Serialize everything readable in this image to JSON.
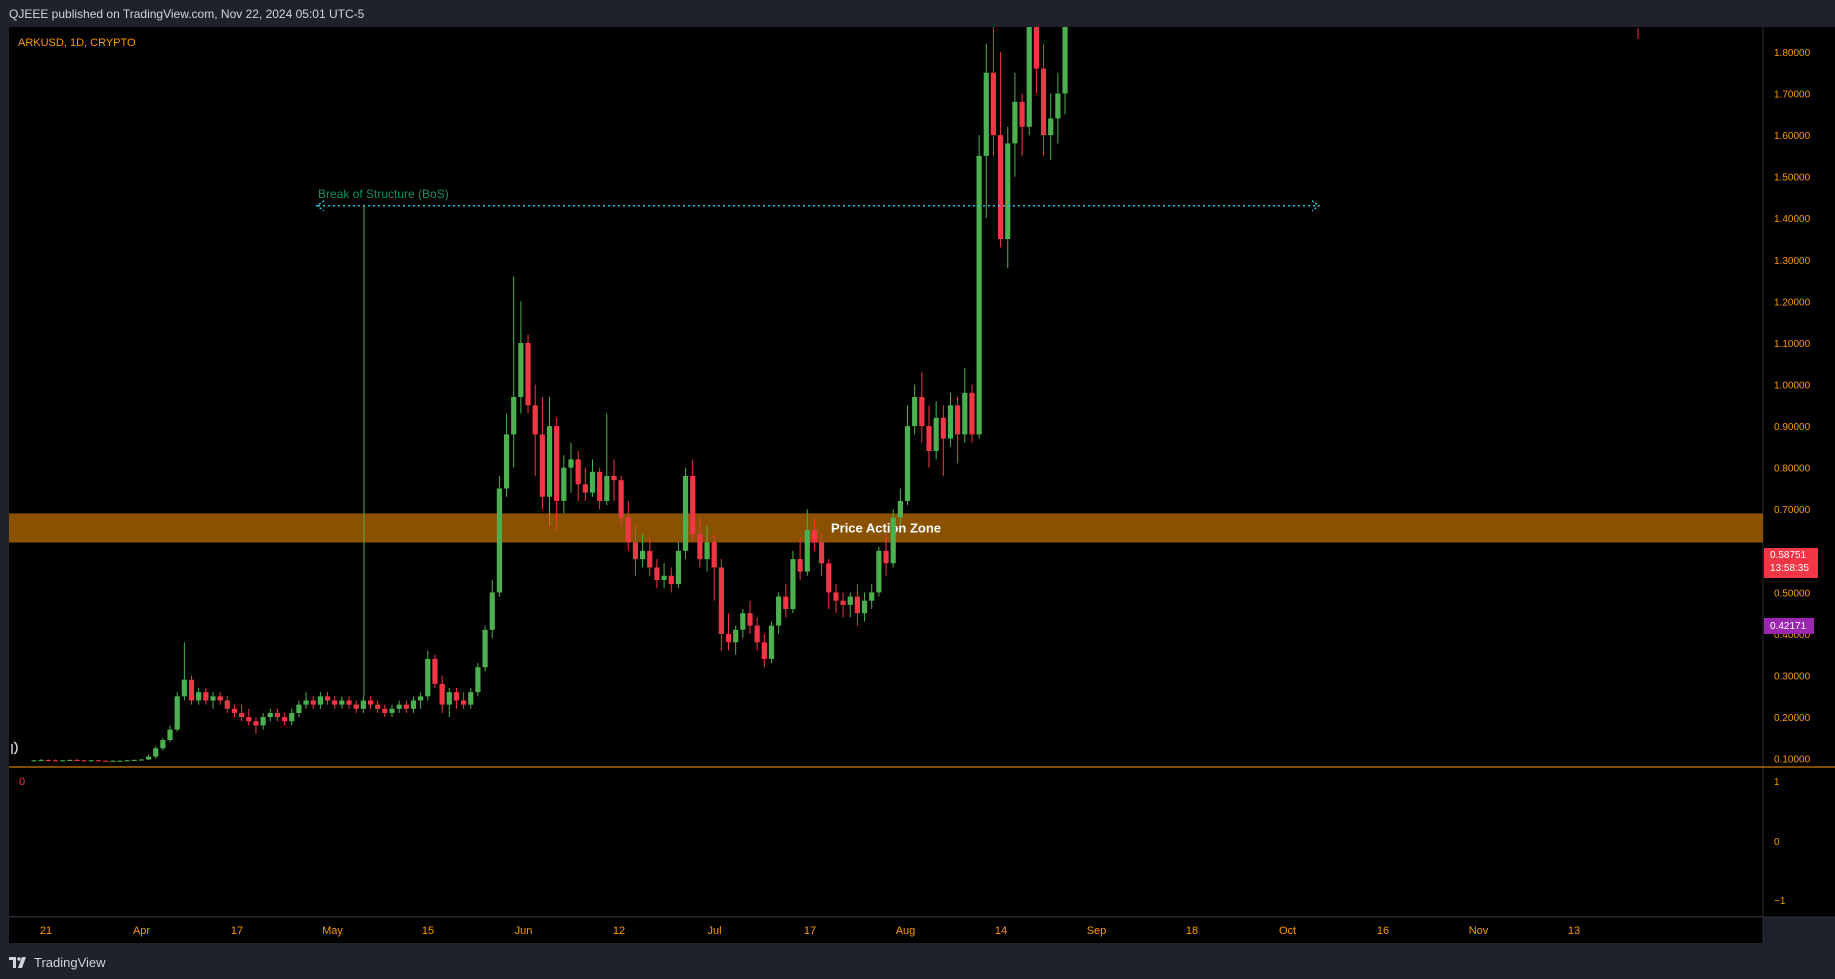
{
  "header": {
    "published": "QJEEE published on TradingView.com, Nov 22, 2024 05:01 UTC-5"
  },
  "footer": {
    "brand": "TradingView"
  },
  "colors": {
    "up": "#4caf50",
    "down": "#f23645",
    "zone": "#8a5200",
    "bos": "#2ec1e6",
    "axis_text": "#ff9800",
    "price_tag": "#f23645",
    "purple_tag": "#9c27b0"
  },
  "chart_data": {
    "type": "candlestick",
    "symbol": "ARKUSD, 1D, CRYPTO",
    "y_axis": {
      "ticks": [
        "1.80000",
        "1.70000",
        "1.60000",
        "1.50000",
        "1.40000",
        "1.30000",
        "1.20000",
        "1.10000",
        "1.00000",
        "0.90000",
        "0.80000",
        "0.70000",
        "0.60000",
        "0.50000",
        "0.40000",
        "0.30000",
        "0.20000",
        "0.10000"
      ],
      "range": [
        0.08,
        1.86
      ]
    },
    "x_axis": {
      "ticks": [
        "21",
        "Apr",
        "17",
        "May",
        "15",
        "Jun",
        "12",
        "Jul",
        "17",
        "Aug",
        "14",
        "Sep",
        "18",
        "Oct",
        "16",
        "Nov",
        "13"
      ]
    },
    "price_tags": [
      {
        "value": "0.58751",
        "countdown": "13:58:35",
        "color": "#f23645",
        "price": 0.5875
      },
      {
        "value": "0.42171",
        "color": "#9c27b0",
        "price": 0.4217
      }
    ],
    "annotations": [
      {
        "type": "horizontal_ray",
        "label": "Break of Structure (BoS)",
        "price": 1.43
      },
      {
        "type": "zone",
        "label": "Price Action Zone",
        "price_low": 0.62,
        "price_high": 0.69
      }
    ],
    "indicator_pane": {
      "value_label": "0",
      "ticks": [
        "1",
        "0",
        "−1"
      ]
    },
    "candles": [
      [
        0.095,
        0.097,
        0.093,
        0.096
      ],
      [
        0.096,
        0.099,
        0.094,
        0.097
      ],
      [
        0.097,
        0.098,
        0.095,
        0.096
      ],
      [
        0.096,
        0.098,
        0.094,
        0.095
      ],
      [
        0.095,
        0.097,
        0.093,
        0.096
      ],
      [
        0.096,
        0.098,
        0.095,
        0.097
      ],
      [
        0.097,
        0.099,
        0.095,
        0.096
      ],
      [
        0.096,
        0.097,
        0.094,
        0.095
      ],
      [
        0.095,
        0.097,
        0.094,
        0.096
      ],
      [
        0.096,
        0.097,
        0.094,
        0.095
      ],
      [
        0.095,
        0.096,
        0.093,
        0.094
      ],
      [
        0.094,
        0.096,
        0.093,
        0.095
      ],
      [
        0.095,
        0.096,
        0.094,
        0.095
      ],
      [
        0.095,
        0.097,
        0.094,
        0.096
      ],
      [
        0.096,
        0.098,
        0.095,
        0.097
      ],
      [
        0.097,
        0.099,
        0.096,
        0.098
      ],
      [
        0.098,
        0.11,
        0.097,
        0.105
      ],
      [
        0.105,
        0.13,
        0.1,
        0.125
      ],
      [
        0.125,
        0.15,
        0.12,
        0.145
      ],
      [
        0.145,
        0.18,
        0.14,
        0.17
      ],
      [
        0.17,
        0.26,
        0.165,
        0.25
      ],
      [
        0.25,
        0.38,
        0.24,
        0.29
      ],
      [
        0.29,
        0.3,
        0.23,
        0.24
      ],
      [
        0.24,
        0.27,
        0.23,
        0.26
      ],
      [
        0.26,
        0.27,
        0.23,
        0.24
      ],
      [
        0.24,
        0.26,
        0.22,
        0.25
      ],
      [
        0.25,
        0.26,
        0.23,
        0.24
      ],
      [
        0.24,
        0.25,
        0.21,
        0.22
      ],
      [
        0.22,
        0.23,
        0.2,
        0.21
      ],
      [
        0.21,
        0.23,
        0.19,
        0.2
      ],
      [
        0.2,
        0.22,
        0.18,
        0.19
      ],
      [
        0.19,
        0.2,
        0.16,
        0.18
      ],
      [
        0.18,
        0.21,
        0.17,
        0.2
      ],
      [
        0.2,
        0.22,
        0.19,
        0.21
      ],
      [
        0.21,
        0.22,
        0.19,
        0.2
      ],
      [
        0.2,
        0.21,
        0.18,
        0.19
      ],
      [
        0.19,
        0.22,
        0.18,
        0.21
      ],
      [
        0.21,
        0.24,
        0.2,
        0.23
      ],
      [
        0.23,
        0.26,
        0.22,
        0.24
      ],
      [
        0.24,
        0.25,
        0.22,
        0.23
      ],
      [
        0.23,
        0.26,
        0.22,
        0.25
      ],
      [
        0.25,
        0.26,
        0.23,
        0.24
      ],
      [
        0.24,
        0.25,
        0.22,
        0.23
      ],
      [
        0.23,
        0.25,
        0.22,
        0.24
      ],
      [
        0.24,
        0.25,
        0.22,
        0.23
      ],
      [
        0.23,
        0.24,
        0.21,
        0.22
      ],
      [
        0.22,
        0.25,
        0.21,
        0.24
      ],
      [
        0.24,
        0.25,
        0.22,
        0.23
      ],
      [
        0.23,
        0.24,
        0.21,
        0.22
      ],
      [
        0.22,
        0.23,
        0.2,
        0.21
      ],
      [
        0.21,
        0.23,
        0.2,
        0.22
      ],
      [
        0.22,
        0.24,
        0.21,
        0.23
      ],
      [
        0.23,
        0.24,
        0.21,
        0.22
      ],
      [
        0.22,
        0.25,
        0.21,
        0.24
      ],
      [
        0.24,
        0.26,
        0.22,
        0.25
      ],
      [
        0.25,
        0.36,
        0.24,
        0.34
      ],
      [
        0.34,
        0.35,
        0.27,
        0.28
      ],
      [
        0.28,
        0.3,
        0.21,
        0.23
      ],
      [
        0.23,
        0.27,
        0.2,
        0.26
      ],
      [
        0.26,
        0.27,
        0.22,
        0.24
      ],
      [
        0.24,
        0.26,
        0.22,
        0.23
      ],
      [
        0.23,
        0.27,
        0.22,
        0.26
      ],
      [
        0.26,
        0.33,
        0.25,
        0.32
      ],
      [
        0.32,
        0.42,
        0.31,
        0.41
      ],
      [
        0.41,
        0.53,
        0.39,
        0.5
      ],
      [
        0.5,
        0.78,
        0.49,
        0.75
      ],
      [
        0.75,
        0.93,
        0.73,
        0.88
      ],
      [
        0.88,
        1.26,
        0.8,
        0.97
      ],
      [
        0.97,
        1.2,
        0.93,
        1.1
      ],
      [
        1.1,
        1.12,
        0.93,
        0.95
      ],
      [
        0.95,
        1.0,
        0.78,
        0.88
      ],
      [
        0.88,
        0.97,
        0.7,
        0.73
      ],
      [
        0.73,
        0.97,
        0.66,
        0.9
      ],
      [
        0.9,
        0.92,
        0.65,
        0.72
      ],
      [
        0.72,
        0.83,
        0.69,
        0.8
      ],
      [
        0.8,
        0.86,
        0.74,
        0.82
      ],
      [
        0.82,
        0.84,
        0.72,
        0.76
      ],
      [
        0.76,
        0.8,
        0.72,
        0.74
      ],
      [
        0.74,
        0.82,
        0.73,
        0.79
      ],
      [
        0.79,
        0.8,
        0.7,
        0.72
      ],
      [
        0.72,
        0.93,
        0.71,
        0.78
      ],
      [
        0.78,
        0.82,
        0.72,
        0.77
      ],
      [
        0.77,
        0.78,
        0.66,
        0.68
      ],
      [
        0.68,
        0.72,
        0.6,
        0.62
      ],
      [
        0.62,
        0.66,
        0.54,
        0.58
      ],
      [
        0.58,
        0.64,
        0.56,
        0.6
      ],
      [
        0.6,
        0.63,
        0.54,
        0.56
      ],
      [
        0.56,
        0.58,
        0.51,
        0.53
      ],
      [
        0.53,
        0.57,
        0.51,
        0.54
      ],
      [
        0.54,
        0.56,
        0.5,
        0.52
      ],
      [
        0.52,
        0.62,
        0.51,
        0.6
      ],
      [
        0.6,
        0.8,
        0.58,
        0.78
      ],
      [
        0.78,
        0.82,
        0.62,
        0.64
      ],
      [
        0.64,
        0.68,
        0.56,
        0.58
      ],
      [
        0.58,
        0.66,
        0.55,
        0.62
      ],
      [
        0.62,
        0.64,
        0.48,
        0.56
      ],
      [
        0.56,
        0.58,
        0.36,
        0.4
      ],
      [
        0.4,
        0.45,
        0.36,
        0.38
      ],
      [
        0.38,
        0.42,
        0.35,
        0.41
      ],
      [
        0.41,
        0.46,
        0.39,
        0.45
      ],
      [
        0.45,
        0.48,
        0.4,
        0.42
      ],
      [
        0.42,
        0.44,
        0.36,
        0.38
      ],
      [
        0.38,
        0.4,
        0.32,
        0.34
      ],
      [
        0.34,
        0.43,
        0.33,
        0.42
      ],
      [
        0.42,
        0.5,
        0.4,
        0.49
      ],
      [
        0.49,
        0.52,
        0.44,
        0.46
      ],
      [
        0.46,
        0.6,
        0.45,
        0.58
      ],
      [
        0.58,
        0.63,
        0.53,
        0.55
      ],
      [
        0.55,
        0.7,
        0.54,
        0.65
      ],
      [
        0.65,
        0.68,
        0.6,
        0.62
      ],
      [
        0.62,
        0.64,
        0.54,
        0.57
      ],
      [
        0.57,
        0.58,
        0.46,
        0.5
      ],
      [
        0.5,
        0.52,
        0.45,
        0.48
      ],
      [
        0.48,
        0.5,
        0.44,
        0.47
      ],
      [
        0.47,
        0.5,
        0.44,
        0.49
      ],
      [
        0.49,
        0.52,
        0.42,
        0.45
      ],
      [
        0.45,
        0.5,
        0.43,
        0.48
      ],
      [
        0.48,
        0.52,
        0.46,
        0.5
      ],
      [
        0.5,
        0.61,
        0.49,
        0.6
      ],
      [
        0.6,
        0.64,
        0.54,
        0.57
      ],
      [
        0.57,
        0.7,
        0.56,
        0.68
      ],
      [
        0.68,
        0.75,
        0.66,
        0.72
      ],
      [
        0.72,
        0.95,
        0.71,
        0.9
      ],
      [
        0.9,
        1.0,
        0.88,
        0.97
      ],
      [
        0.97,
        1.03,
        0.86,
        0.9
      ],
      [
        0.9,
        0.95,
        0.8,
        0.84
      ],
      [
        0.84,
        0.96,
        0.82,
        0.92
      ],
      [
        0.92,
        0.95,
        0.78,
        0.87
      ],
      [
        0.87,
        0.98,
        0.85,
        0.95
      ],
      [
        0.95,
        0.97,
        0.81,
        0.88
      ],
      [
        0.88,
        1.04,
        0.86,
        0.98
      ],
      [
        0.98,
        1.0,
        0.86,
        0.88
      ],
      [
        0.88,
        1.6,
        0.87,
        1.55
      ],
      [
        1.55,
        1.82,
        1.4,
        1.75
      ],
      [
        1.75,
        2.0,
        1.55,
        1.6
      ],
      [
        1.6,
        1.8,
        1.33,
        1.35
      ],
      [
        1.35,
        1.62,
        1.28,
        1.58
      ],
      [
        1.58,
        1.75,
        1.5,
        1.68
      ],
      [
        1.68,
        1.7,
        1.55,
        1.62
      ],
      [
        1.62,
        1.9,
        1.6,
        1.88
      ],
      [
        1.88,
        1.9,
        1.7,
        1.76
      ],
      [
        1.76,
        1.82,
        1.55,
        1.6
      ],
      [
        1.6,
        1.7,
        1.54,
        1.64
      ],
      [
        1.64,
        1.75,
        1.58,
        1.7
      ],
      [
        1.7,
        1.9,
        1.65,
        1.88
      ]
    ]
  }
}
